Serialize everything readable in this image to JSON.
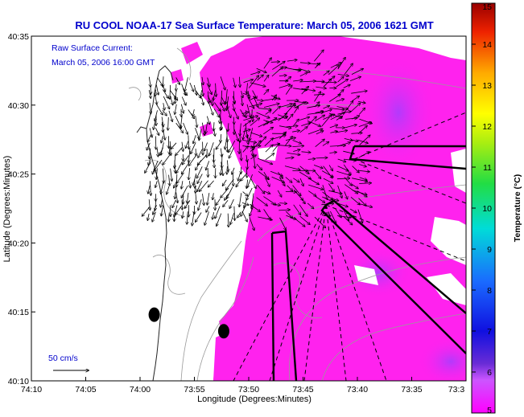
{
  "chart_data": {
    "type": "heatmap",
    "title": "RU COOL  NOAA-17  Sea Surface Temperature:  March 05, 2006 1621 GMT",
    "annotation_lines": [
      "Raw Surface Current:",
      "March 05, 2006 16:00 GMT"
    ],
    "scale_label": "50 cm/s",
    "xlabel": "Longitude (Degrees:Minutes)",
    "ylabel": "Latitude (Degrees:Minutes)",
    "xticks": [
      "74:10",
      "74:05",
      "74:00",
      "73:55",
      "73:50",
      "73:45",
      "73:40",
      "73:35",
      "73:3"
    ],
    "yticks": [
      "40:35",
      "40:30",
      "40:25",
      "40:20",
      "40:15",
      "40:10"
    ],
    "xlim": [
      -74.1667,
      -73.5
    ],
    "ylim": [
      40.1667,
      40.5833
    ],
    "colorbar": {
      "label": "Temperature (°C)",
      "ticks": [
        5,
        6,
        7,
        8,
        9,
        10,
        11,
        12,
        13,
        14,
        15
      ],
      "range": [
        5,
        15
      ]
    },
    "field_summary": "Sea surface temperature mostly 5–6 °C offshore (magenta/purple), land and clouds masked white",
    "vector_field": "surface current arrows concentrated in the northwest quadrant near the coast",
    "markers": [
      {
        "lon": -73.9783,
        "lat": 40.2467
      },
      {
        "lon": -73.8717,
        "lat": 40.2267
      }
    ]
  },
  "colors": {
    "title": "#0000cc",
    "sst_main": "#ff22ee",
    "sst_cool": "#9933ff",
    "contour": "#888888",
    "coast": "#222222"
  }
}
